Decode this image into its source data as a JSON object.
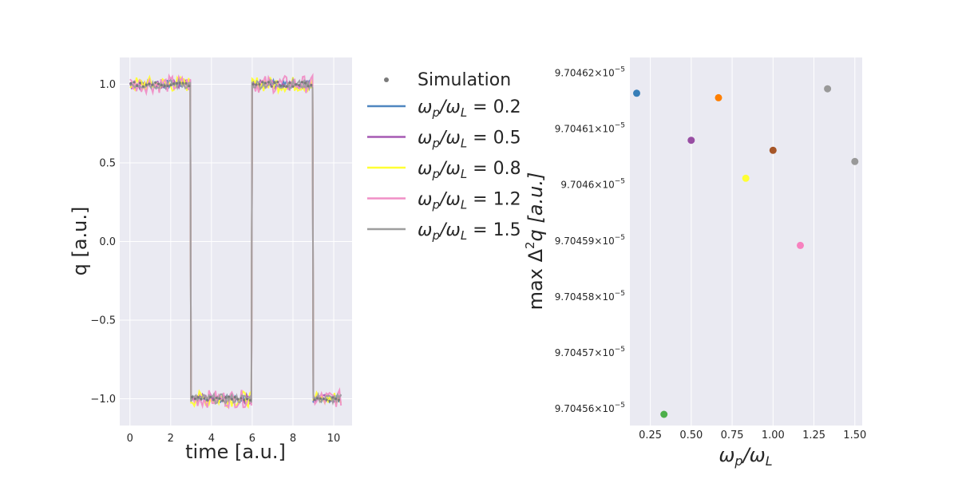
{
  "chart_data": [
    {
      "type": "line",
      "xlabel": "time [a.u.]",
      "ylabel": "q [a.u.]",
      "xlim": [
        -0.5,
        10.9
      ],
      "ylim": [
        -1.17,
        1.17
      ],
      "xticks": [
        0,
        2,
        4,
        6,
        8,
        10
      ],
      "xtick_labels": [
        "0",
        "2",
        "4",
        "6",
        "8",
        "10"
      ],
      "yticks": [
        1.0,
        0.5,
        0.0,
        -0.5,
        -1.0
      ],
      "ytick_labels": [
        "1.0",
        "0.5",
        "0.0",
        "−0.5",
        "−1.0"
      ],
      "grid": true,
      "square_wave": {
        "times": [
          0,
          3,
          3,
          6,
          6,
          9,
          9,
          10.4
        ],
        "values": [
          1,
          1,
          -1,
          -1,
          1,
          1,
          -1,
          -1
        ]
      },
      "series": [
        {
          "name": "ω_p/ω_L = 0.2",
          "color": "#4f86c0"
        },
        {
          "name": "ω_p/ω_L = 0.5",
          "color": "#a65ab3"
        },
        {
          "name": "ω_p/ω_L = 0.8",
          "color": "#ffff33"
        },
        {
          "name": "ω_p/ω_L = 1.2",
          "color": "#f08fc6"
        },
        {
          "name": "ω_p/ω_L = 1.5",
          "color": "#9e9e9e"
        }
      ]
    },
    {
      "type": "scatter",
      "xlabel": "ω_p/ω_L",
      "ylabel": "max Δ²q [a.u.]",
      "xlim": [
        0.125,
        1.545
      ],
      "ylim": [
        9.704557e-05,
        9.7046228e-05
      ],
      "xticks": [
        0.25,
        0.5,
        0.75,
        1.0,
        1.25,
        1.5
      ],
      "xtick_labels": [
        "0.25",
        "0.50",
        "0.75",
        "1.00",
        "1.25",
        "1.50"
      ],
      "yticks": [
        9.70462e-05,
        9.70461e-05,
        9.7046e-05,
        9.70459e-05,
        9.70458e-05,
        9.70457e-05,
        9.70456e-05
      ],
      "ytick_mantissas": [
        "9.70462",
        "9.70461",
        "9.7046",
        "9.70459",
        "9.70458",
        "9.70457",
        "9.70456"
      ],
      "ytick_exponent": "−5",
      "grid": true,
      "points": [
        {
          "x": 0.1667,
          "y": 9.7046164e-05,
          "color": "#377eb8"
        },
        {
          "x": 0.3333,
          "y": 9.704559e-05,
          "color": "#4daf4a"
        },
        {
          "x": 0.5,
          "y": 9.704608e-05,
          "color": "#984ea3"
        },
        {
          "x": 0.6667,
          "y": 9.7046156e-05,
          "color": "#ff7f00"
        },
        {
          "x": 0.8333,
          "y": 9.7046012e-05,
          "color": "#ffff33"
        },
        {
          "x": 1.0,
          "y": 9.7046062e-05,
          "color": "#a65628"
        },
        {
          "x": 1.1667,
          "y": 9.7045892e-05,
          "color": "#f781bf"
        },
        {
          "x": 1.3333,
          "y": 9.7046172e-05,
          "color": "#999999"
        },
        {
          "x": 1.5,
          "y": 9.7046042e-05,
          "color": "#999999"
        }
      ]
    }
  ],
  "legend": {
    "simulation_label": "Simulation",
    "simulation_color": "#7a7a7a",
    "entries": [
      {
        "prefix": "ω",
        "sub1": "p",
        "sep": "/ω",
        "sub2": "L",
        "value": " = 0.2",
        "color": "#4f86c0"
      },
      {
        "prefix": "ω",
        "sub1": "p",
        "sep": "/ω",
        "sub2": "L",
        "value": " = 0.5",
        "color": "#a65ab3"
      },
      {
        "prefix": "ω",
        "sub1": "p",
        "sep": "/ω",
        "sub2": "L",
        "value": " = 0.8",
        "color": "#ffff33"
      },
      {
        "prefix": "ω",
        "sub1": "p",
        "sep": "/ω",
        "sub2": "L",
        "value": " = 1.2",
        "color": "#f08fc6"
      },
      {
        "prefix": "ω",
        "sub1": "p",
        "sep": "/ω",
        "sub2": "L",
        "value": " = 1.5",
        "color": "#9e9e9e"
      }
    ]
  },
  "right_axis_labels": {
    "x": {
      "w1": "ω",
      "s1": "p",
      "mid": "/ω",
      "s2": "L"
    },
    "y": {
      "a": "max Δ",
      "sup": "2",
      "b": "q [a.u.]"
    }
  }
}
